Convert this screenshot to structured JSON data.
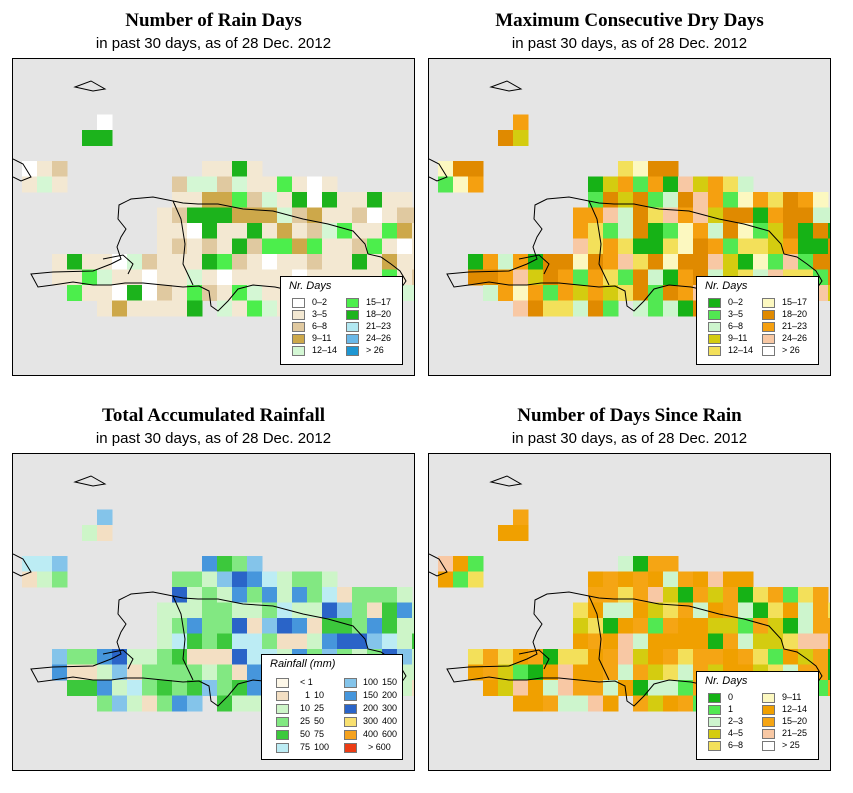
{
  "panels": [
    {
      "title": "Number of Rain Days",
      "subtitle": "in past 30 days, as of  28 Dec. 2012",
      "legend": {
        "title": "Nr. Days",
        "items": [
          {
            "label": "0–2",
            "color": "#ffffff"
          },
          {
            "label": "3–5",
            "color": "#f3e8d2"
          },
          {
            "label": "6–8",
            "color": "#e0c9a0"
          },
          {
            "label": "9–11",
            "color": "#cda84a"
          },
          {
            "label": "12–14",
            "color": "#d4f7d4"
          },
          {
            "label": "15–17",
            "color": "#4cee4c"
          },
          {
            "label": "18–20",
            "color": "#1cb31c"
          },
          {
            "label": "21–23",
            "color": "#b2e8f2"
          },
          {
            "label": "24–26",
            "color": "#6ab8e8"
          },
          {
            "label": "> 26",
            "color": "#1e96d2"
          }
        ]
      }
    },
    {
      "title": "Maximum Consecutive Dry Days",
      "subtitle": "in past 30 days, as of  28 Dec. 2012",
      "legend": {
        "title": "Nr. Days",
        "items": [
          {
            "label": "0–2",
            "color": "#16b216"
          },
          {
            "label": "3–5",
            "color": "#52e852"
          },
          {
            "label": "6–8",
            "color": "#cdf5cd"
          },
          {
            "label": "9–11",
            "color": "#d4cc10"
          },
          {
            "label": "12–14",
            "color": "#f3e05a"
          },
          {
            "label": "15–17",
            "color": "#fcf8c0"
          },
          {
            "label": "18–20",
            "color": "#e08a00"
          },
          {
            "label": "21–23",
            "color": "#f5a010"
          },
          {
            "label": "24–26",
            "color": "#f8c8a4"
          },
          {
            "label": "> 26",
            "color": "#ffffff"
          }
        ]
      }
    },
    {
      "title": "Total Accumulated Rainfall",
      "subtitle": "in past 30 days, as of  28 Dec. 2012",
      "legend": {
        "title": "Rainfall (mm)",
        "items": [
          {
            "lo": "",
            "hi": "< 1",
            "color": "#fdf7e8"
          },
          {
            "lo": "1",
            "hi": "10",
            "color": "#f3dfc3"
          },
          {
            "lo": "10",
            "hi": "25",
            "color": "#cdf5c8"
          },
          {
            "lo": "25",
            "hi": "50",
            "color": "#82e882"
          },
          {
            "lo": "50",
            "hi": "75",
            "color": "#3cc83c"
          },
          {
            "lo": "75",
            "hi": "100",
            "color": "#bcecf4"
          },
          {
            "lo": "100",
            "hi": "150",
            "color": "#84c4ea"
          },
          {
            "lo": "150",
            "hi": "200",
            "color": "#4696dc"
          },
          {
            "lo": "200",
            "hi": "300",
            "color": "#2a64c8"
          },
          {
            "lo": "300",
            "hi": "400",
            "color": "#f8e070"
          },
          {
            "lo": "400",
            "hi": "600",
            "color": "#f5a21e"
          },
          {
            "lo": "",
            "hi": "> 600",
            "color": "#ec3c14"
          }
        ]
      }
    },
    {
      "title": "Number of Days Since Rain",
      "subtitle": "in past 30 days, as of  28 Dec. 2012",
      "legend": {
        "title": "Nr. Days",
        "items": [
          {
            "label": "0",
            "color": "#16b216"
          },
          {
            "label": "1",
            "color": "#52e852"
          },
          {
            "label": "2–3",
            "color": "#cdf5cd"
          },
          {
            "label": "4–5",
            "color": "#d4cc10"
          },
          {
            "label": "6–8",
            "color": "#f3e05a"
          },
          {
            "label": "9–11",
            "color": "#fcf8c0"
          },
          {
            "label": "12–14",
            "color": "#f0a000"
          },
          {
            "label": "15–20",
            "color": "#f5a514"
          },
          {
            "label": "21–25",
            "color": "#f8c8a4"
          },
          {
            "label": "> 25",
            "color": "#ffffff"
          }
        ]
      }
    }
  ]
}
